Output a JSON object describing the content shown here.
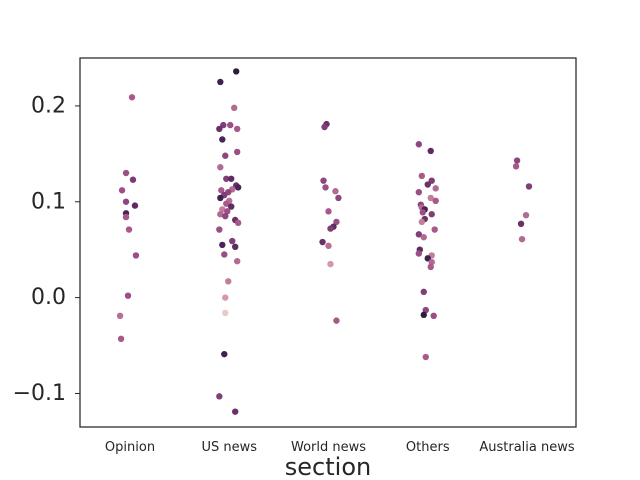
{
  "chart_data": {
    "type": "scatter",
    "subtype": "strip",
    "xlabel": "section",
    "ylabel": "",
    "ylim": [
      -0.135,
      0.25
    ],
    "yticks": [
      {
        "value": -0.1,
        "label": "−0.1"
      },
      {
        "value": 0.0,
        "label": "0.0"
      },
      {
        "value": 0.1,
        "label": "0.1"
      },
      {
        "value": 0.2,
        "label": "0.2"
      }
    ],
    "grid": false,
    "legend": "none",
    "categories": [
      "Opinion",
      "US news",
      "World news",
      "Others",
      "Australia news"
    ],
    "colors": {
      "dark": "#2d1e3e",
      "mid": "#7e3f74",
      "light": "#b06b92",
      "pale": "#e4bcc0",
      "axis": "#262626"
    },
    "points": [
      {
        "category": "Opinion",
        "y": 0.209,
        "jitter": 0.02,
        "color": "#a8588a"
      },
      {
        "category": "Opinion",
        "y": 0.13,
        "jitter": -0.04,
        "color": "#9a4f85"
      },
      {
        "category": "Opinion",
        "y": 0.123,
        "jitter": 0.03,
        "color": "#7b3a76"
      },
      {
        "category": "Opinion",
        "y": 0.112,
        "jitter": -0.08,
        "color": "#9a4f85"
      },
      {
        "category": "Opinion",
        "y": 0.1,
        "jitter": -0.04,
        "color": "#8e4680"
      },
      {
        "category": "Opinion",
        "y": 0.096,
        "jitter": 0.05,
        "color": "#5e2b62"
      },
      {
        "category": "Opinion",
        "y": 0.088,
        "jitter": -0.04,
        "color": "#4a2458"
      },
      {
        "category": "Opinion",
        "y": 0.084,
        "jitter": -0.04,
        "color": "#a8588a"
      },
      {
        "category": "Opinion",
        "y": 0.071,
        "jitter": -0.01,
        "color": "#a8588a"
      },
      {
        "category": "Opinion",
        "y": 0.044,
        "jitter": 0.06,
        "color": "#9a4f85"
      },
      {
        "category": "Opinion",
        "y": 0.002,
        "jitter": -0.02,
        "color": "#9a4f85"
      },
      {
        "category": "Opinion",
        "y": -0.019,
        "jitter": -0.1,
        "color": "#b86e93"
      },
      {
        "category": "Opinion",
        "y": -0.043,
        "jitter": -0.09,
        "color": "#a8588a"
      },
      {
        "category": "US news",
        "y": 0.236,
        "jitter": 0.07,
        "color": "#2d1e3e"
      },
      {
        "category": "US news",
        "y": 0.225,
        "jitter": -0.09,
        "color": "#3f2150"
      },
      {
        "category": "US news",
        "y": 0.198,
        "jitter": 0.05,
        "color": "#b06b92"
      },
      {
        "category": "US news",
        "y": 0.18,
        "jitter": -0.06,
        "color": "#7e3f74"
      },
      {
        "category": "US news",
        "y": 0.18,
        "jitter": 0.01,
        "color": "#9a4f85"
      },
      {
        "category": "US news",
        "y": 0.176,
        "jitter": -0.1,
        "color": "#6b3068"
      },
      {
        "category": "US news",
        "y": 0.176,
        "jitter": 0.08,
        "color": "#a8588a"
      },
      {
        "category": "US news",
        "y": 0.165,
        "jitter": -0.07,
        "color": "#4a2458"
      },
      {
        "category": "US news",
        "y": 0.152,
        "jitter": 0.08,
        "color": "#9a4f85"
      },
      {
        "category": "US news",
        "y": 0.148,
        "jitter": -0.04,
        "color": "#8e4680"
      },
      {
        "category": "US news",
        "y": 0.136,
        "jitter": -0.09,
        "color": "#b06b92"
      },
      {
        "category": "US news",
        "y": 0.124,
        "jitter": -0.03,
        "color": "#7e3f74"
      },
      {
        "category": "US news",
        "y": 0.124,
        "jitter": 0.02,
        "color": "#5e2b62"
      },
      {
        "category": "US news",
        "y": 0.117,
        "jitter": 0.07,
        "color": "#6b3068"
      },
      {
        "category": "US news",
        "y": 0.115,
        "jitter": 0.09,
        "color": "#4a2458"
      },
      {
        "category": "US news",
        "y": 0.113,
        "jitter": 0.03,
        "color": "#b06b92"
      },
      {
        "category": "US news",
        "y": 0.112,
        "jitter": -0.08,
        "color": "#a8588a"
      },
      {
        "category": "US news",
        "y": 0.11,
        "jitter": -0.01,
        "color": "#8e4680"
      },
      {
        "category": "US news",
        "y": 0.107,
        "jitter": -0.05,
        "color": "#7e3f74"
      },
      {
        "category": "US news",
        "y": 0.104,
        "jitter": -0.09,
        "color": "#3f2150"
      },
      {
        "category": "US news",
        "y": 0.101,
        "jitter": 0.0,
        "color": "#b86e93"
      },
      {
        "category": "US news",
        "y": 0.098,
        "jitter": -0.03,
        "color": "#a8588a"
      },
      {
        "category": "US news",
        "y": 0.095,
        "jitter": 0.02,
        "color": "#5e2b62"
      },
      {
        "category": "US news",
        "y": 0.092,
        "jitter": -0.07,
        "color": "#c27f9b"
      },
      {
        "category": "US news",
        "y": 0.09,
        "jitter": -0.02,
        "color": "#9a4f85"
      },
      {
        "category": "US news",
        "y": 0.087,
        "jitter": -0.09,
        "color": "#b06b92"
      },
      {
        "category": "US news",
        "y": 0.085,
        "jitter": -0.04,
        "color": "#8e4680"
      },
      {
        "category": "US news",
        "y": 0.081,
        "jitter": 0.06,
        "color": "#6b3068"
      },
      {
        "category": "US news",
        "y": 0.078,
        "jitter": 0.09,
        "color": "#a8588a"
      },
      {
        "category": "US news",
        "y": 0.071,
        "jitter": -0.1,
        "color": "#9a4f85"
      },
      {
        "category": "US news",
        "y": 0.059,
        "jitter": 0.03,
        "color": "#7e3f74"
      },
      {
        "category": "US news",
        "y": 0.055,
        "jitter": -0.07,
        "color": "#4a2458"
      },
      {
        "category": "US news",
        "y": 0.053,
        "jitter": 0.06,
        "color": "#5e2b62"
      },
      {
        "category": "US news",
        "y": 0.045,
        "jitter": -0.05,
        "color": "#9a4f85"
      },
      {
        "category": "US news",
        "y": 0.038,
        "jitter": 0.08,
        "color": "#b06b92"
      },
      {
        "category": "US news",
        "y": 0.017,
        "jitter": -0.01,
        "color": "#c27f9b"
      },
      {
        "category": "US news",
        "y": 0.0,
        "jitter": -0.04,
        "color": "#d49aa9"
      },
      {
        "category": "US news",
        "y": -0.016,
        "jitter": -0.04,
        "color": "#ecc8c8"
      },
      {
        "category": "US news",
        "y": -0.059,
        "jitter": -0.05,
        "color": "#3f2150"
      },
      {
        "category": "US news",
        "y": -0.103,
        "jitter": -0.1,
        "color": "#7e3f74"
      },
      {
        "category": "US news",
        "y": -0.119,
        "jitter": 0.06,
        "color": "#6b3068"
      },
      {
        "category": "World news",
        "y": 0.181,
        "jitter": -0.02,
        "color": "#6b3068"
      },
      {
        "category": "World news",
        "y": 0.178,
        "jitter": -0.04,
        "color": "#7e3f74"
      },
      {
        "category": "World news",
        "y": 0.122,
        "jitter": -0.05,
        "color": "#8e4680"
      },
      {
        "category": "World news",
        "y": 0.115,
        "jitter": -0.03,
        "color": "#9a4f85"
      },
      {
        "category": "World news",
        "y": 0.111,
        "jitter": 0.07,
        "color": "#b06b92"
      },
      {
        "category": "World news",
        "y": 0.104,
        "jitter": 0.1,
        "color": "#8e4680"
      },
      {
        "category": "World news",
        "y": 0.09,
        "jitter": 0.0,
        "color": "#a8588a"
      },
      {
        "category": "World news",
        "y": 0.079,
        "jitter": 0.08,
        "color": "#9a4f85"
      },
      {
        "category": "World news",
        "y": 0.074,
        "jitter": 0.05,
        "color": "#5e2b62"
      },
      {
        "category": "World news",
        "y": 0.072,
        "jitter": 0.02,
        "color": "#7e3f74"
      },
      {
        "category": "World news",
        "y": 0.058,
        "jitter": -0.06,
        "color": "#6b3068"
      },
      {
        "category": "World news",
        "y": 0.054,
        "jitter": 0.0,
        "color": "#b86e93"
      },
      {
        "category": "World news",
        "y": 0.035,
        "jitter": 0.02,
        "color": "#d49aa9"
      },
      {
        "category": "World news",
        "y": -0.024,
        "jitter": 0.08,
        "color": "#a8588a"
      },
      {
        "category": "Others",
        "y": 0.16,
        "jitter": -0.09,
        "color": "#8e4680"
      },
      {
        "category": "Others",
        "y": 0.153,
        "jitter": 0.03,
        "color": "#5e2b62"
      },
      {
        "category": "Others",
        "y": 0.127,
        "jitter": -0.06,
        "color": "#a8588a"
      },
      {
        "category": "Others",
        "y": 0.122,
        "jitter": 0.04,
        "color": "#7e3f74"
      },
      {
        "category": "Others",
        "y": 0.118,
        "jitter": 0.0,
        "color": "#6b3068"
      },
      {
        "category": "Others",
        "y": 0.114,
        "jitter": 0.08,
        "color": "#b06b92"
      },
      {
        "category": "Others",
        "y": 0.11,
        "jitter": -0.09,
        "color": "#9a4f85"
      },
      {
        "category": "Others",
        "y": 0.104,
        "jitter": 0.03,
        "color": "#c27f9b"
      },
      {
        "category": "Others",
        "y": 0.101,
        "jitter": 0.08,
        "color": "#a8588a"
      },
      {
        "category": "Others",
        "y": 0.097,
        "jitter": -0.07,
        "color": "#8e4680"
      },
      {
        "category": "Others",
        "y": 0.094,
        "jitter": -0.06,
        "color": "#b06b92"
      },
      {
        "category": "Others",
        "y": 0.092,
        "jitter": -0.03,
        "color": "#4a2458"
      },
      {
        "category": "Others",
        "y": 0.089,
        "jitter": -0.05,
        "color": "#9a4f85"
      },
      {
        "category": "Others",
        "y": 0.087,
        "jitter": 0.04,
        "color": "#7e3f74"
      },
      {
        "category": "Others",
        "y": 0.082,
        "jitter": -0.03,
        "color": "#6b3068"
      },
      {
        "category": "Others",
        "y": 0.079,
        "jitter": -0.06,
        "color": "#c27f9b"
      },
      {
        "category": "Others",
        "y": 0.071,
        "jitter": 0.07,
        "color": "#a8588a"
      },
      {
        "category": "Others",
        "y": 0.066,
        "jitter": -0.09,
        "color": "#7e3f74"
      },
      {
        "category": "Others",
        "y": 0.063,
        "jitter": -0.04,
        "color": "#b06b92"
      },
      {
        "category": "Others",
        "y": 0.05,
        "jitter": -0.08,
        "color": "#5e2b62"
      },
      {
        "category": "Others",
        "y": 0.046,
        "jitter": -0.09,
        "color": "#9a4f85"
      },
      {
        "category": "Others",
        "y": 0.044,
        "jitter": 0.04,
        "color": "#c27f9b"
      },
      {
        "category": "Others",
        "y": 0.041,
        "jitter": 0.0,
        "color": "#3f2150"
      },
      {
        "category": "Others",
        "y": 0.037,
        "jitter": 0.04,
        "color": "#b06b92"
      },
      {
        "category": "Others",
        "y": 0.032,
        "jitter": 0.03,
        "color": "#a8588a"
      },
      {
        "category": "Others",
        "y": 0.006,
        "jitter": -0.04,
        "color": "#7e3f74"
      },
      {
        "category": "Others",
        "y": -0.013,
        "jitter": -0.02,
        "color": "#8e4680"
      },
      {
        "category": "Others",
        "y": -0.018,
        "jitter": -0.04,
        "color": "#2d1e3e"
      },
      {
        "category": "Others",
        "y": -0.019,
        "jitter": 0.06,
        "color": "#9a4f85"
      },
      {
        "category": "Others",
        "y": -0.062,
        "jitter": -0.02,
        "color": "#a8588a"
      },
      {
        "category": "Australia news",
        "y": 0.143,
        "jitter": -0.1,
        "color": "#8e4680"
      },
      {
        "category": "Australia news",
        "y": 0.137,
        "jitter": -0.11,
        "color": "#a8588a"
      },
      {
        "category": "Australia news",
        "y": 0.116,
        "jitter": 0.02,
        "color": "#7e3f74"
      },
      {
        "category": "Australia news",
        "y": 0.086,
        "jitter": -0.01,
        "color": "#b06b92"
      },
      {
        "category": "Australia news",
        "y": 0.077,
        "jitter": -0.06,
        "color": "#6b3068"
      },
      {
        "category": "Australia news",
        "y": 0.061,
        "jitter": -0.05,
        "color": "#b06b92"
      }
    ]
  }
}
